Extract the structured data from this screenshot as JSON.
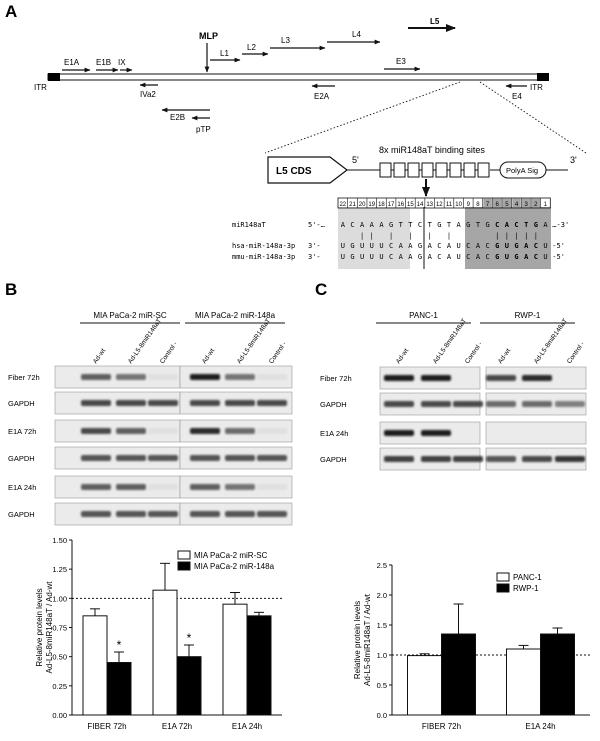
{
  "panel_letters": {
    "a": "A",
    "b": "B",
    "c": "C"
  },
  "genome": {
    "itr_left": "ITR",
    "itr_right": "ITR",
    "mlp": "MLP",
    "top_labels": [
      "E1A",
      "E1B",
      "IX",
      "L1",
      "L2",
      "L3",
      "L4",
      "L5",
      "E3"
    ],
    "bottom_labels": [
      "IVa2",
      "E2A",
      "E4",
      "E2B",
      "pTP"
    ]
  },
  "construct": {
    "cds_label": "L5 CDS",
    "five_prime": "5'",
    "three_prime": "3'",
    "sites_label": "8x miR148aT binding sites",
    "polya_label": "PolyA Sig",
    "numbers": [
      "22",
      "21",
      "20",
      "19",
      "18",
      "17",
      "16",
      "15",
      "14",
      "13",
      "12",
      "11",
      "10",
      "9",
      "8",
      "7",
      "6",
      "5",
      "4",
      "3",
      "2",
      "1"
    ],
    "rows": [
      {
        "name": "miR148aT",
        "prefix": "5'-…",
        "seq": [
          "A",
          "C",
          "A",
          "A",
          "A",
          "G",
          "T",
          "T",
          "C",
          "T",
          "G",
          "T",
          "A",
          "G",
          "T",
          "G",
          "C",
          "A",
          "C",
          "T",
          "G",
          "A"
        ],
        "suffix": "…-3'"
      },
      {
        "name": "",
        "prefix": "",
        "seq": [
          "",
          "",
          "|",
          "|",
          "",
          "|",
          "",
          "|",
          "",
          "|",
          "",
          "|",
          "",
          "",
          "",
          "",
          "|",
          "|",
          "|",
          "|",
          "|",
          ""
        ],
        "suffix": ""
      },
      {
        "name": "hsa-miR-148a-3p",
        "prefix": "3'-",
        "seq": [
          "U",
          "G",
          "U",
          "U",
          "U",
          "C",
          "A",
          "A",
          "G",
          "A",
          "C",
          "A",
          "U",
          "C",
          "A",
          "C",
          "G",
          "U",
          "G",
          "A",
          "C",
          "U"
        ],
        "suffix": "-5'"
      },
      {
        "name": "mmu-miR-148a-3p",
        "prefix": "3'-",
        "seq": [
          "U",
          "G",
          "U",
          "U",
          "U",
          "C",
          "A",
          "A",
          "G",
          "A",
          "C",
          "A",
          "U",
          "C",
          "A",
          "C",
          "G",
          "U",
          "G",
          "A",
          "C",
          "U"
        ],
        "suffix": "-5'"
      }
    ]
  },
  "blot_b": {
    "groups": [
      "MIA PaCa-2 miR-SC",
      "MIA PaCa-2 miR-148a"
    ],
    "lanes": [
      "Ad-wt",
      "Ad-L5-8miR148aT",
      "Control -",
      "Ad-wt",
      "Ad-L5-8miR148aT",
      "Control -"
    ],
    "rows": [
      "Fiber 72h",
      "GAPDH",
      "E1A 72h",
      "GAPDH",
      "E1A 24h",
      "GAPDH"
    ],
    "intensity": [
      [
        0.65,
        0.55,
        0.05,
        0.95,
        0.55,
        0.05
      ],
      [
        0.75,
        0.75,
        0.75,
        0.75,
        0.75,
        0.75
      ],
      [
        0.75,
        0.65,
        0.05,
        0.9,
        0.6,
        0.05
      ],
      [
        0.7,
        0.7,
        0.7,
        0.7,
        0.7,
        0.7
      ],
      [
        0.65,
        0.65,
        0.05,
        0.65,
        0.55,
        0.05
      ],
      [
        0.7,
        0.7,
        0.7,
        0.7,
        0.7,
        0.7
      ]
    ]
  },
  "blot_c": {
    "groups": [
      "PANC-1",
      "RWP-1"
    ],
    "lanes": [
      "Ad-wt",
      "Ad-L5-8miR148aT",
      "Control -",
      "Ad-wt",
      "Ad-L5-8miR148aT",
      "Control -"
    ],
    "rows": [
      "Fiber 72h",
      "GAPDH",
      "E1A 24h",
      "GAPDH"
    ],
    "intensity": [
      [
        0.95,
        0.95,
        0.0,
        0.75,
        0.9,
        0.0
      ],
      [
        0.75,
        0.75,
        0.75,
        0.6,
        0.6,
        0.5
      ],
      [
        0.95,
        0.95,
        0.0,
        0.0,
        0.0,
        0.0
      ],
      [
        0.8,
        0.8,
        0.8,
        0.7,
        0.75,
        0.85
      ]
    ]
  },
  "chart_data": [
    {
      "type": "bar",
      "panel": "B",
      "categories": [
        "FIBER 72h",
        "E1A 72h",
        "E1A 24h"
      ],
      "ylabel": "Relative protein levels\nAd-L5-8miR148aT / Ad-wt",
      "ylim": [
        0,
        1.5
      ],
      "yticks": [
        "0.00",
        "0.25",
        "0.50",
        "0.75",
        "1.00",
        "1.25",
        "1.50"
      ],
      "reference_line": 1.0,
      "legend_position": "top-right",
      "series": [
        {
          "name": "MIA PaCa-2 miR-SC",
          "color": "#ffffff",
          "values": [
            0.85,
            1.07,
            0.95
          ],
          "errors": [
            0.06,
            0.23,
            0.1
          ],
          "annotations": [
            "",
            "",
            ""
          ]
        },
        {
          "name": "MIA PaCa-2 miR-148a",
          "color": "#000000",
          "values": [
            0.45,
            0.5,
            0.85
          ],
          "errors": [
            0.09,
            0.1,
            0.03
          ],
          "annotations": [
            "*",
            "*",
            ""
          ]
        }
      ]
    },
    {
      "type": "bar",
      "panel": "C",
      "categories": [
        "FIBER 72h",
        "E1A 24h"
      ],
      "ylabel": "Relative protein levels\nAd-L5-8miR148aT / Ad-wt",
      "ylim": [
        0,
        2.5
      ],
      "yticks": [
        "0.0",
        "0.5",
        "1.0",
        "1.5",
        "2.0",
        "2.5"
      ],
      "reference_line": 1.0,
      "legend_position": "top-right",
      "series": [
        {
          "name": "PANC-1",
          "color": "#ffffff",
          "values": [
            0.99,
            1.1
          ],
          "errors": [
            0.03,
            0.06
          ],
          "annotations": [
            "",
            ""
          ]
        },
        {
          "name": "RWP-1",
          "color": "#000000",
          "values": [
            1.35,
            1.35
          ],
          "errors": [
            0.5,
            0.1
          ],
          "annotations": [
            "",
            ""
          ]
        }
      ]
    }
  ]
}
